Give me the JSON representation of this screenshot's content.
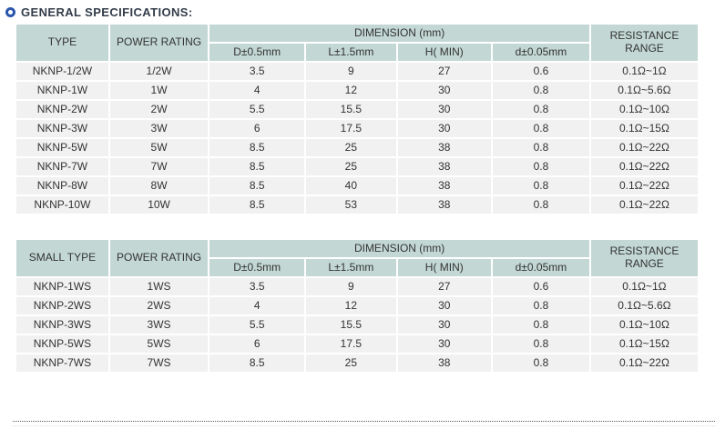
{
  "page": {
    "title": "GENERAL SPECIFICATIONS:"
  },
  "colors": {
    "header_bg": "#c3d8d4",
    "row_bg": "#f1f1f1",
    "grid": "#ffffff",
    "title_color": "#333d4a",
    "icon_blue": "#2a55ad"
  },
  "tables": [
    {
      "type_header": "TYPE",
      "power_header": "POWER RATING",
      "dimension_header": "DIMENSION (mm)",
      "resistance_header": "RESISTANCE RANGE",
      "sub_headers": [
        "D±0.5mm",
        "L±1.5mm",
        "H( MIN)",
        "d±0.05mm"
      ],
      "rows": [
        [
          "NKNP-1/2W",
          "1/2W",
          "3.5",
          "9",
          "27",
          "0.6",
          "0.1Ω~1Ω"
        ],
        [
          "NKNP-1W",
          "1W",
          "4",
          "12",
          "30",
          "0.8",
          "0.1Ω~5.6Ω"
        ],
        [
          "NKNP-2W",
          "2W",
          "5.5",
          "15.5",
          "30",
          "0.8",
          "0.1Ω~10Ω"
        ],
        [
          "NKNP-3W",
          "3W",
          "6",
          "17.5",
          "30",
          "0.8",
          "0.1Ω~15Ω"
        ],
        [
          "NKNP-5W",
          "5W",
          "8.5",
          "25",
          "38",
          "0.8",
          "0.1Ω~22Ω"
        ],
        [
          "NKNP-7W",
          "7W",
          "8.5",
          "25",
          "38",
          "0.8",
          "0.1Ω~22Ω"
        ],
        [
          "NKNP-8W",
          "8W",
          "8.5",
          "40",
          "38",
          "0.8",
          "0.1Ω~22Ω"
        ],
        [
          "NKNP-10W",
          "10W",
          "8.5",
          "53",
          "38",
          "0.8",
          "0.1Ω~22Ω"
        ]
      ]
    },
    {
      "type_header": "SMALL TYPE",
      "power_header": "POWER RATING",
      "dimension_header": "DIMENSION (mm)",
      "resistance_header": "RESISTANCE RANGE",
      "sub_headers": [
        "D±0.5mm",
        "L±1.5mm",
        "H( MIN)",
        "d±0.05mm"
      ],
      "rows": [
        [
          "NKNP-1WS",
          "1WS",
          "3.5",
          "9",
          "27",
          "0.6",
          "0.1Ω~1Ω"
        ],
        [
          "NKNP-2WS",
          "2WS",
          "4",
          "12",
          "30",
          "0.8",
          "0.1Ω~5.6Ω"
        ],
        [
          "NKNP-3WS",
          "3WS",
          "5.5",
          "15.5",
          "30",
          "0.8",
          "0.1Ω~10Ω"
        ],
        [
          "NKNP-5WS",
          "5WS",
          "6",
          "17.5",
          "30",
          "0.8",
          "0.1Ω~15Ω"
        ],
        [
          "NKNP-7WS",
          "7WS",
          "8.5",
          "25",
          "38",
          "0.8",
          "0.1Ω~22Ω"
        ]
      ]
    }
  ],
  "column_widths_pct": [
    13.7,
    14.6,
    14.1,
    13.4,
    13.9,
    14.4,
    15.9
  ]
}
